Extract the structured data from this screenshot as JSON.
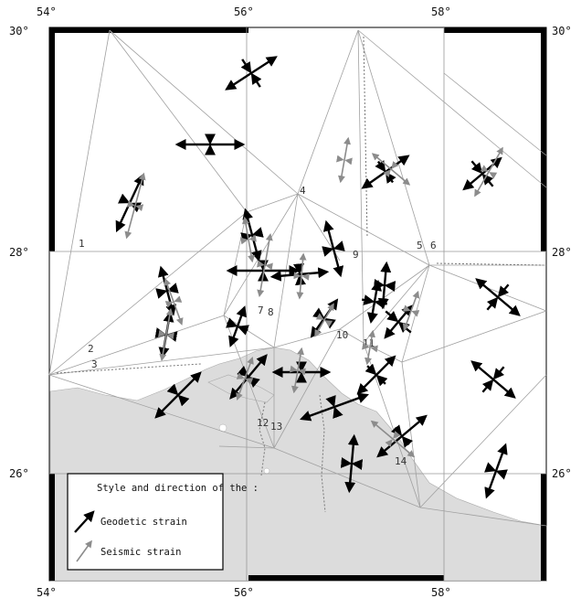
{
  "map": {
    "lon_labels_top": [
      "54°",
      "56°",
      "58°"
    ],
    "lon_labels_bottom": [
      "54°",
      "56°",
      "58°"
    ],
    "lat_labels_left": [
      "30°",
      "28°",
      "26°"
    ],
    "lat_labels_right": [
      "30°",
      "28°",
      "26°"
    ],
    "zone_numbers": [
      "1",
      "2",
      "3",
      "4",
      "5",
      "6",
      "7",
      "8",
      "9",
      "10",
      "11",
      "12",
      "13",
      "14"
    ],
    "colors": {
      "land": "#dcdcdc",
      "grid": "#999999",
      "geodetic": "#000000",
      "seismic": "#8c8c8c"
    }
  },
  "legend": {
    "title": "Style and direction of the :",
    "geodetic_label": "Geodetic strain",
    "seismic_label": "Seismic strain"
  }
}
